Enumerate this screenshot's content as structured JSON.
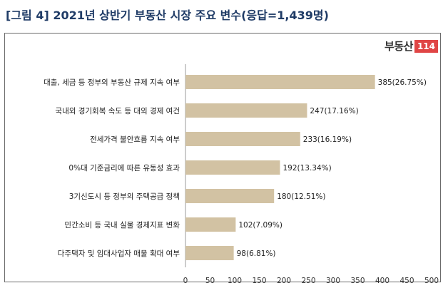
{
  "title": "[그림 4] 2021년 상반기 부동산 시장 주요 변수(응답=1,439명)",
  "logo": {
    "text": "부동산",
    "badge": "114"
  },
  "colors": {
    "bar": "#d2c2a3",
    "axis": "#999999",
    "title": "#1f3b66"
  },
  "chart_data": {
    "type": "bar",
    "orientation": "horizontal",
    "title": "2021년 상반기 부동산 시장 주요 변수(응답=1,439명)",
    "categories": [
      "대출, 세금 등 정부의 부동산 규제 지속 여부",
      "국내외 경기회복 속도 등 대외 경제 여건",
      "전세가격 불안흐름 지속 여부",
      "0%대 기준금리에 따른 유동성 효과",
      "3기신도시 등 정부의 주택공급 정책",
      "민간소비 등 국내 실물 경제지표 변화",
      "다주택자 및 임대사업자 매물 확대 여부"
    ],
    "values": [
      385,
      247,
      233,
      192,
      180,
      102,
      98
    ],
    "data_labels": [
      "385(26.75%)",
      "247(17.16%)",
      "233(16.19%)",
      "192(13.34%)",
      "180(12.51%)",
      "102(7.09%)",
      "98(6.81%)"
    ],
    "xlim": [
      0,
      500
    ],
    "xticks": [
      0,
      50,
      100,
      150,
      200,
      250,
      300,
      350,
      400,
      450,
      500
    ],
    "xlabel": "",
    "ylabel": ""
  }
}
